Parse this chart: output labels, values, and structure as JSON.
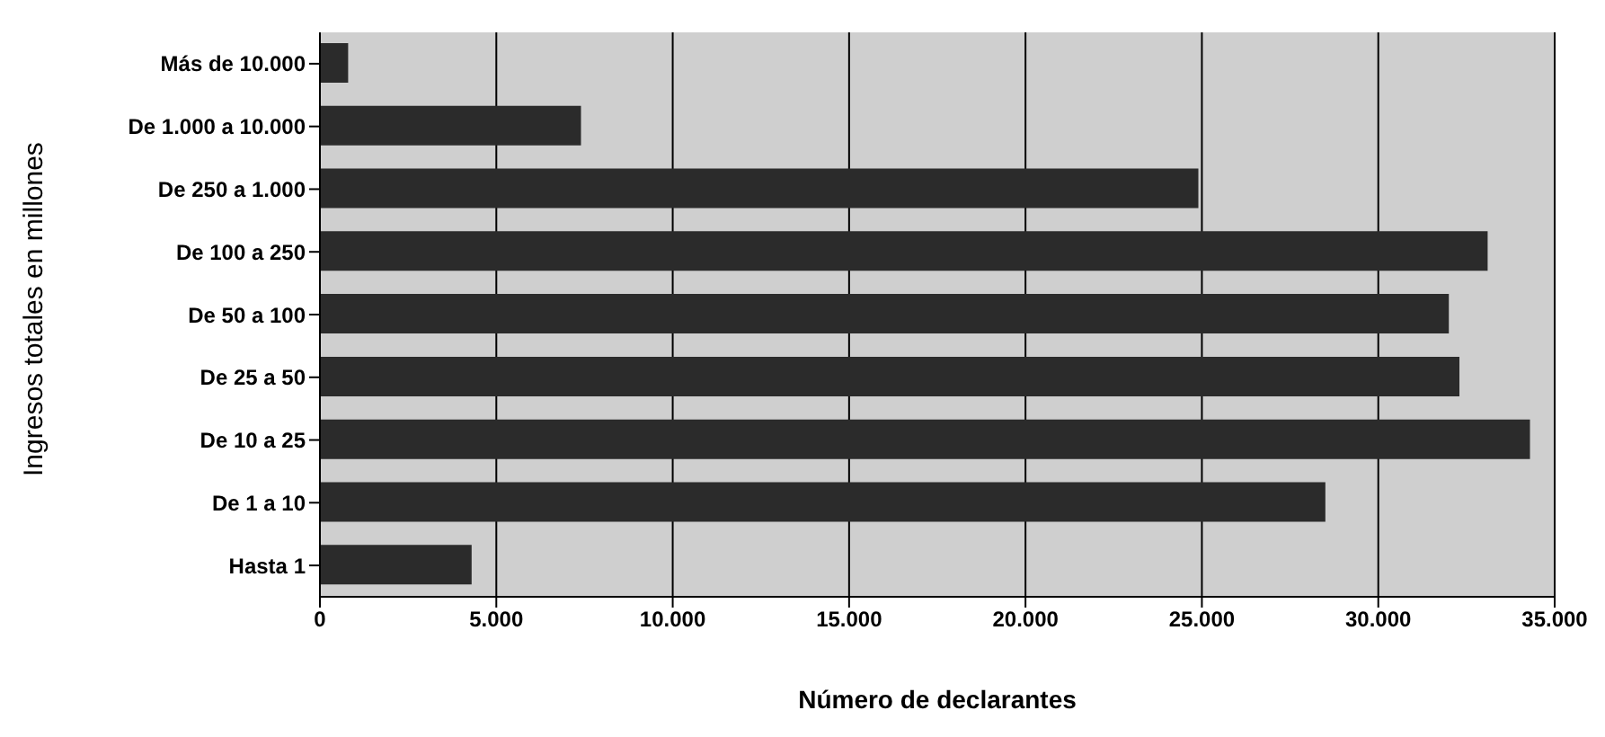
{
  "chart_data": {
    "type": "bar",
    "orientation": "horizontal",
    "xlabel": "Número de declarantes",
    "ylabel": "Ingresos totales en millones",
    "categories": [
      "Más de 10.000",
      "De 1.000 a 10.000",
      "De 250 a 1.000",
      "De 100 a 250",
      "De 50 a 100",
      "De 25 a 50",
      "De 10 a 25",
      "De 1 a 10",
      "Hasta 1"
    ],
    "values": [
      800,
      7400,
      24900,
      33100,
      32000,
      32300,
      34300,
      28500,
      4300
    ],
    "color": "#2b2b2b",
    "xlim": [
      0,
      35000
    ],
    "xticks": [
      {
        "value": 0,
        "label": "0"
      },
      {
        "value": 5000,
        "label": "5.000"
      },
      {
        "value": 10000,
        "label": "10.000"
      },
      {
        "value": 15000,
        "label": "15.000"
      },
      {
        "value": 20000,
        "label": "20.000"
      },
      {
        "value": 25000,
        "label": "25.000"
      },
      {
        "value": 30000,
        "label": "30.000"
      },
      {
        "value": 35000,
        "label": "35.000"
      }
    ],
    "grid": "x"
  }
}
